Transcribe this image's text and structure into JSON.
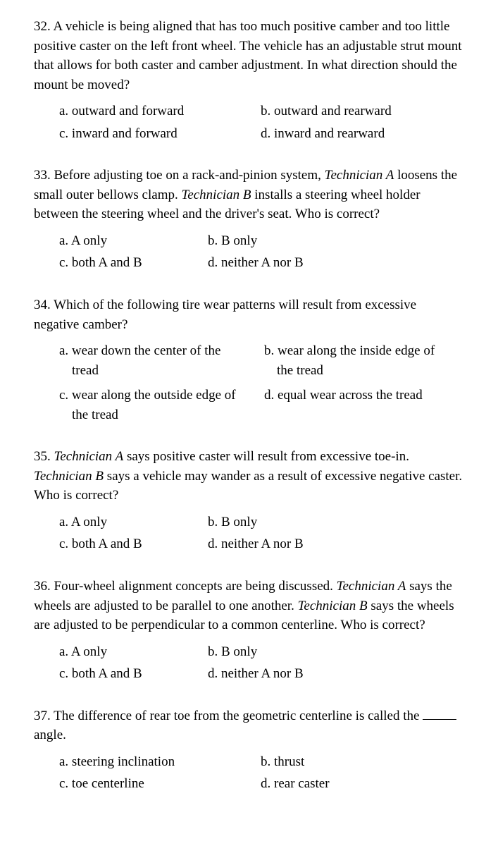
{
  "questions": [
    {
      "num": "32.",
      "stem_parts": [
        {
          "t": "A vehicle is being aligned that has too much positive camber and too little positive caster on the left front wheel. The vehicle has an adjustable strut mount that allows for both caster and camber adjustment. In what direction should the mount be moved?",
          "i": false
        }
      ],
      "opts": {
        "a": "a. outward and forward",
        "b": "b. outward and rearward",
        "c": "c. inward and forward",
        "d": "d. inward and rearward"
      },
      "layout": "wide"
    },
    {
      "num": "33.",
      "stem_parts": [
        {
          "t": "Before adjusting toe on a rack-and-pinion system, ",
          "i": false
        },
        {
          "t": "Technician A",
          "i": true
        },
        {
          "t": " loosens the small outer bellows clamp. ",
          "i": false
        },
        {
          "t": "Technician B",
          "i": true
        },
        {
          "t": " installs a steering wheel holder between the steering wheel and the driver's seat. Who is correct?",
          "i": false
        }
      ],
      "opts": {
        "a": "a. A only",
        "b": "b. B only",
        "c": "c. both A and B",
        "d": "d. neither A nor B"
      },
      "layout": "narrow"
    },
    {
      "num": "34.",
      "stem_parts": [
        {
          "t": "Which of the following tire wear patterns will result from excessive negative camber?",
          "i": false
        }
      ],
      "opts": {
        "a": "a. wear down the center of the tread",
        "b": "b. wear along the inside edge of the tread",
        "c": "c. wear along the outside edge of the tread",
        "d": "d. equal wear across the tread"
      },
      "layout": "block"
    },
    {
      "num": "35.",
      "stem_parts": [
        {
          "t": "Technician A",
          "i": true
        },
        {
          "t": " says positive caster will result from excessive toe-in. ",
          "i": false
        },
        {
          "t": "Technician B",
          "i": true
        },
        {
          "t": " says a vehicle may wander as a result of excessive negative caster. Who is correct?",
          "i": false
        }
      ],
      "opts": {
        "a": "a. A only",
        "b": "b. B only",
        "c": "c. both A and B",
        "d": "d. neither A nor B"
      },
      "layout": "narrow"
    },
    {
      "num": "36.",
      "stem_parts": [
        {
          "t": "Four-wheel alignment concepts are being discussed. ",
          "i": false
        },
        {
          "t": "Technician A",
          "i": true
        },
        {
          "t": " says the wheels are adjusted to be parallel to one another. ",
          "i": false
        },
        {
          "t": "Technician B",
          "i": true
        },
        {
          "t": " says the wheels are adjusted to be perpendicular to a common centerline. Who is correct?",
          "i": false
        }
      ],
      "opts": {
        "a": "a. A only",
        "b": "b. B only",
        "c": "c. both A and B",
        "d": "d. neither A nor B"
      },
      "layout": "narrow"
    },
    {
      "num": "37.",
      "stem_parts": [
        {
          "t": "The difference of rear toe from the geometric centerline is called the ",
          "i": false
        },
        {
          "t": "",
          "blank": true
        },
        {
          "t": " angle.",
          "i": false
        }
      ],
      "opts": {
        "a": "a. steering inclination",
        "b": "b. thrust",
        "c": "c. toe centerline",
        "d": "d. rear caster"
      },
      "layout": "wide"
    }
  ]
}
